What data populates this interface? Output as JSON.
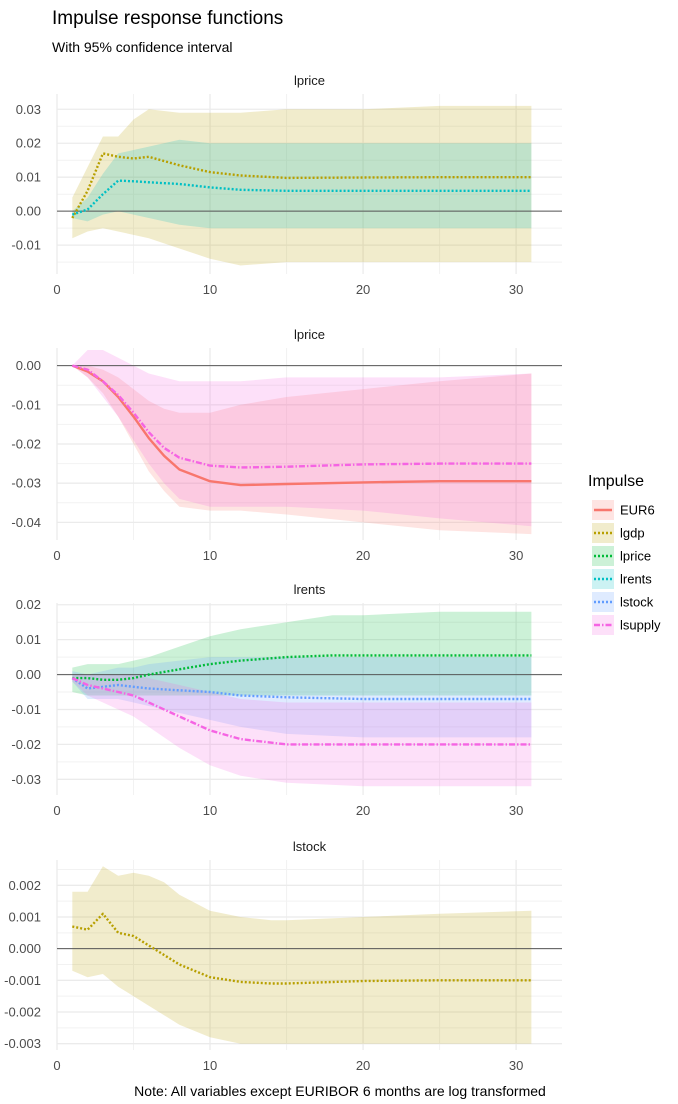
{
  "title": "Impulse response functions",
  "subtitle": "With 95% confidence interval",
  "caption": "Note: All variables except EURIBOR 6 months are log transformed",
  "legend": {
    "title": "Impulse",
    "position": "right",
    "items": [
      {
        "name": "EUR6",
        "color": "#F8766D",
        "line": "solid"
      },
      {
        "name": "lgdp",
        "color": "#B79F00",
        "line": "dotted"
      },
      {
        "name": "lprice",
        "color": "#00BA38",
        "line": "dotted"
      },
      {
        "name": "lrents",
        "color": "#00BFC4",
        "line": "dotted"
      },
      {
        "name": "lstock",
        "color": "#619CFF",
        "line": "dotted"
      },
      {
        "name": "lsupply",
        "color": "#F564E3",
        "line": "dotdash"
      }
    ]
  },
  "chart_data": [
    {
      "type": "line",
      "title": "lprice",
      "xlim": [
        0,
        33
      ],
      "ylim": [
        -0.0185,
        0.0345
      ],
      "xticks": [
        0,
        10,
        20,
        30
      ],
      "xtick_labels": [
        "0",
        "10",
        "20",
        "30"
      ],
      "yticks": [
        -0.01,
        0,
        0.01,
        0.02,
        0.03
      ],
      "ytick_labels": [
        "-0.01",
        "0.00",
        "0.01",
        "0.02",
        "0.03"
      ],
      "grid": true,
      "zero_line": true,
      "series": [
        {
          "name": "lgdp",
          "color": "#B79F00",
          "line": "dotted",
          "x": [
            1,
            2,
            3,
            4,
            5,
            6,
            8,
            10,
            12,
            15,
            20,
            25,
            31
          ],
          "y": [
            -0.002,
            0.006,
            0.017,
            0.016,
            0.0155,
            0.016,
            0.0135,
            0.0115,
            0.0105,
            0.0098,
            0.0099,
            0.01,
            0.01
          ],
          "lower": [
            -0.008,
            -0.006,
            -0.005,
            -0.006,
            -0.007,
            -0.008,
            -0.011,
            -0.014,
            -0.016,
            -0.015,
            -0.015,
            -0.015,
            -0.015
          ],
          "upper": [
            0.004,
            0.013,
            0.022,
            0.022,
            0.027,
            0.03,
            0.029,
            0.029,
            0.029,
            0.03,
            0.03,
            0.031,
            0.031
          ]
        },
        {
          "name": "lrents",
          "color": "#00BFC4",
          "line": "dotted",
          "x": [
            1,
            2,
            3,
            4,
            5,
            6,
            8,
            10,
            12,
            15,
            20,
            25,
            31
          ],
          "y": [
            -0.001,
            0.0005,
            0.005,
            0.009,
            0.0088,
            0.0085,
            0.008,
            0.007,
            0.0063,
            0.006,
            0.006,
            0.006,
            0.006
          ],
          "lower": [
            -0.002,
            -0.003,
            -0.001,
            0,
            -0.001,
            -0.002,
            -0.004,
            -0.005,
            -0.005,
            -0.005,
            -0.005,
            -0.005,
            -0.005
          ],
          "upper": [
            0,
            0.004,
            0.011,
            0.017,
            0.018,
            0.019,
            0.021,
            0.02,
            0.02,
            0.02,
            0.02,
            0.02,
            0.02
          ]
        }
      ]
    },
    {
      "type": "line",
      "title": "lprice",
      "xlim": [
        0,
        33
      ],
      "ylim": [
        -0.0445,
        0.0045
      ],
      "xticks": [
        0,
        10,
        20,
        30
      ],
      "xtick_labels": [
        "0",
        "10",
        "20",
        "30"
      ],
      "yticks": [
        -0.04,
        -0.03,
        -0.02,
        -0.01,
        0
      ],
      "ytick_labels": [
        "-0.04",
        "-0.03",
        "-0.02",
        "-0.01",
        "0.00"
      ],
      "grid": true,
      "zero_line": true,
      "series": [
        {
          "name": "EUR6",
          "color": "#F8766D",
          "line": "solid",
          "x": [
            1,
            2,
            3,
            4,
            5,
            6,
            7,
            8,
            10,
            12,
            15,
            20,
            25,
            31
          ],
          "y": [
            0,
            -0.0015,
            -0.004,
            -0.008,
            -0.013,
            -0.0185,
            -0.023,
            -0.0265,
            -0.0295,
            -0.0305,
            -0.0302,
            -0.0298,
            -0.0295,
            -0.0295
          ],
          "lower": [
            0,
            -0.003,
            -0.007,
            -0.013,
            -0.02,
            -0.027,
            -0.032,
            -0.036,
            -0.037,
            -0.037,
            -0.038,
            -0.04,
            -0.042,
            -0.043
          ],
          "upper": [
            0,
            0,
            -0.001,
            -0.003,
            -0.006,
            -0.009,
            -0.011,
            -0.012,
            -0.012,
            -0.01,
            -0.008,
            -0.006,
            -0.004,
            -0.002
          ]
        },
        {
          "name": "lsupply",
          "color": "#F564E3",
          "line": "dotdash",
          "x": [
            1,
            2,
            3,
            4,
            5,
            6,
            7,
            8,
            10,
            12,
            15,
            20,
            25,
            31
          ],
          "y": [
            0,
            -0.001,
            -0.004,
            -0.0075,
            -0.012,
            -0.017,
            -0.021,
            -0.0235,
            -0.0255,
            -0.026,
            -0.0258,
            -0.0252,
            -0.025,
            -0.025
          ],
          "lower": [
            0,
            -0.003,
            -0.008,
            -0.013,
            -0.019,
            -0.025,
            -0.03,
            -0.034,
            -0.036,
            -0.036,
            -0.036,
            -0.037,
            -0.039,
            -0.041
          ],
          "upper": [
            0,
            0.004,
            0.004,
            0.002,
            0,
            -0.002,
            -0.003,
            -0.004,
            -0.004,
            -0.004,
            -0.003,
            -0.003,
            -0.003,
            -0.002
          ]
        }
      ]
    },
    {
      "type": "line",
      "title": "lrents",
      "xlim": [
        0,
        33
      ],
      "ylim": [
        -0.0345,
        0.0205
      ],
      "xticks": [
        0,
        10,
        20,
        30
      ],
      "xtick_labels": [
        "0",
        "10",
        "20",
        "30"
      ],
      "yticks": [
        -0.03,
        -0.02,
        -0.01,
        0,
        0.01,
        0.02
      ],
      "ytick_labels": [
        "-0.03",
        "-0.02",
        "-0.01",
        "0.00",
        "0.01",
        "0.02"
      ],
      "grid": true,
      "zero_line": true,
      "series": [
        {
          "name": "lprice",
          "color": "#00BA38",
          "line": "dotted",
          "x": [
            1,
            2,
            3,
            4,
            5,
            6,
            8,
            10,
            12,
            15,
            18,
            20,
            25,
            31
          ],
          "y": [
            -0.001,
            -0.001,
            -0.0015,
            -0.0015,
            -0.001,
            0,
            0.0015,
            0.003,
            0.004,
            0.005,
            0.0055,
            0.0055,
            0.0055,
            0.0055
          ],
          "lower": [
            -0.005,
            -0.006,
            -0.006,
            -0.006,
            -0.006,
            -0.006,
            -0.006,
            -0.006,
            -0.006,
            -0.006,
            -0.006,
            -0.006,
            -0.006,
            -0.006
          ],
          "upper": [
            0.002,
            0.003,
            0.003,
            0.003,
            0.004,
            0.005,
            0.008,
            0.011,
            0.013,
            0.015,
            0.017,
            0.017,
            0.018,
            0.018
          ]
        },
        {
          "name": "lstock",
          "color": "#619CFF",
          "line": "dotted",
          "x": [
            1,
            2,
            3,
            4,
            5,
            6,
            8,
            10,
            12,
            15,
            20,
            25,
            31
          ],
          "y": [
            -0.001,
            -0.004,
            -0.0035,
            -0.003,
            -0.0035,
            -0.004,
            -0.0045,
            -0.005,
            -0.006,
            -0.0065,
            -0.007,
            -0.007,
            -0.007
          ],
          "lower": [
            -0.002,
            -0.007,
            -0.007,
            -0.007,
            -0.008,
            -0.009,
            -0.011,
            -0.013,
            -0.015,
            -0.017,
            -0.018,
            -0.018,
            -0.018
          ],
          "upper": [
            0.001,
            0,
            0.001,
            0.002,
            0.002,
            0.003,
            0.004,
            0.005,
            0.005,
            0.005,
            0.005,
            0.005,
            0.005
          ]
        },
        {
          "name": "lsupply",
          "color": "#F564E3",
          "line": "dotdash",
          "x": [
            1,
            2,
            3,
            4,
            5,
            6,
            8,
            10,
            12,
            15,
            20,
            25,
            31
          ],
          "y": [
            -0.001,
            -0.003,
            -0.004,
            -0.005,
            -0.006,
            -0.008,
            -0.012,
            -0.016,
            -0.0185,
            -0.02,
            -0.02,
            -0.02,
            -0.02
          ],
          "lower": [
            -0.002,
            -0.006,
            -0.008,
            -0.01,
            -0.012,
            -0.015,
            -0.021,
            -0.026,
            -0.029,
            -0.031,
            -0.032,
            -0.032,
            -0.032
          ],
          "upper": [
            0,
            0,
            0,
            0,
            0,
            -0.001,
            -0.003,
            -0.005,
            -0.007,
            -0.008,
            -0.008,
            -0.008,
            -0.008
          ]
        }
      ]
    },
    {
      "type": "line",
      "title": "lstock",
      "xlim": [
        0,
        33
      ],
      "ylim": [
        -0.0032,
        0.0028
      ],
      "xticks": [
        0,
        10,
        20,
        30
      ],
      "xtick_labels": [
        "0",
        "10",
        "20",
        "30"
      ],
      "yticks": [
        -0.003,
        -0.002,
        -0.001,
        0,
        0.001,
        0.002
      ],
      "ytick_labels": [
        "-0.003",
        "-0.002",
        "-0.001",
        "0.000",
        "0.001",
        "0.002"
      ],
      "grid": true,
      "zero_line": true,
      "series": [
        {
          "name": "lgdp",
          "color": "#B79F00",
          "line": "dotted",
          "x": [
            1,
            2,
            3,
            4,
            5,
            6,
            7,
            8,
            10,
            12,
            14,
            15,
            20,
            25,
            31
          ],
          "y": [
            0.0007,
            0.0006,
            0.0011,
            0.0005,
            0.0004,
            0.0001,
            -0.0002,
            -0.0005,
            -0.0009,
            -0.00105,
            -0.0011,
            -0.0011,
            -0.00102,
            -0.001,
            -0.001
          ],
          "lower": [
            -0.0007,
            -0.0009,
            -0.0008,
            -0.0012,
            -0.0015,
            -0.0018,
            -0.0021,
            -0.0024,
            -0.0028,
            -0.003,
            -0.003,
            -0.003,
            -0.003,
            -0.003,
            -0.003
          ],
          "upper": [
            0.0018,
            0.0018,
            0.0026,
            0.0023,
            0.0024,
            0.0023,
            0.0021,
            0.0017,
            0.0012,
            0.001,
            0.0009,
            0.0009,
            0.001,
            0.0011,
            0.0012
          ]
        }
      ]
    }
  ]
}
